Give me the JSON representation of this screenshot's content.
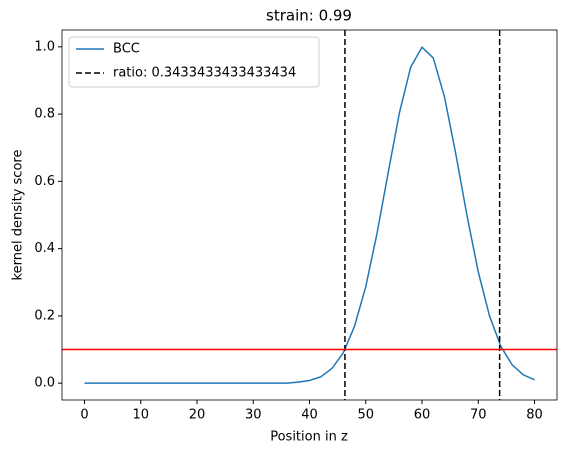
{
  "chart_data": {
    "type": "line",
    "title": "strain: 0.99",
    "x_label": "Position in z",
    "y_label": "kernel density score",
    "x": [
      0,
      2,
      4,
      6,
      8,
      10,
      12,
      14,
      16,
      18,
      20,
      22,
      24,
      26,
      28,
      30,
      32,
      34,
      36,
      38,
      40,
      42,
      44,
      46,
      48,
      50,
      52,
      54,
      56,
      58,
      60,
      62,
      64,
      66,
      68,
      70,
      72,
      74,
      76,
      78,
      80
    ],
    "series": [
      {
        "name": "BCC",
        "color": "#1f77b4",
        "values": [
          0,
          0,
          0,
          0,
          0,
          0,
          0,
          0,
          0,
          0,
          0,
          0,
          0,
          0,
          0,
          0,
          0,
          0,
          0,
          0.003,
          0.008,
          0.019,
          0.044,
          0.09,
          0.169,
          0.287,
          0.445,
          0.627,
          0.805,
          0.94,
          0.999,
          0.967,
          0.851,
          0.682,
          0.498,
          0.331,
          0.2,
          0.11,
          0.055,
          0.025,
          0.01
        ]
      }
    ],
    "vlines": {
      "name": "ratio: 0.3433433433433434",
      "color": "#000000",
      "values": [
        46.3,
        73.8
      ]
    },
    "hline": {
      "color": "#ff0000",
      "value": 0.1
    },
    "xlim": [
      -4,
      84
    ],
    "ylim": [
      -0.05,
      1.05
    ],
    "xticks": [
      0,
      10,
      20,
      30,
      40,
      50,
      60,
      70,
      80
    ],
    "yticks": [
      {
        "value": 0,
        "label": "0.0"
      },
      {
        "value": 0.2,
        "label": "0.2"
      },
      {
        "value": 0.4,
        "label": "0.4"
      },
      {
        "value": 0.6,
        "label": "0.6"
      },
      {
        "value": 0.8,
        "label": "0.8"
      },
      {
        "value": 1,
        "label": "1.0"
      }
    ],
    "legend": "upper left"
  }
}
